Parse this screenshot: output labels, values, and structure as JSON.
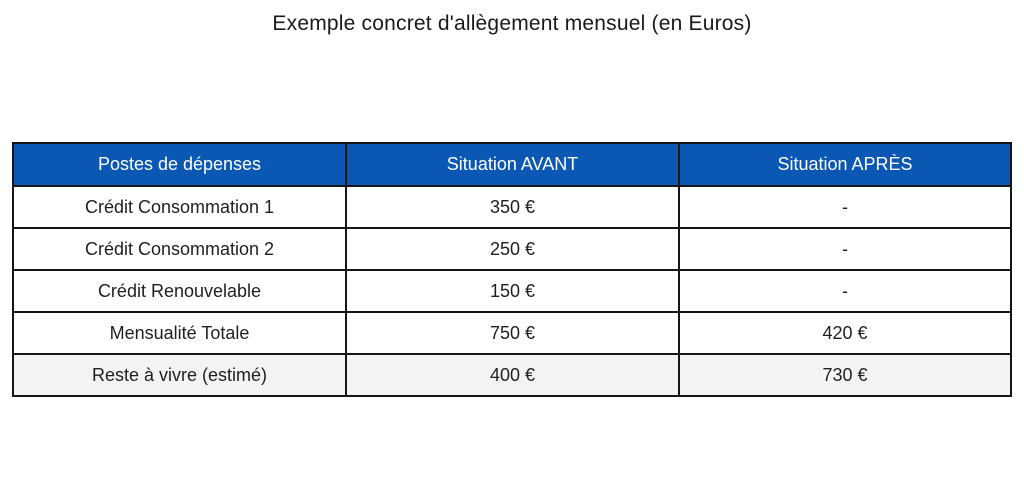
{
  "title": "Exemple concret d'allègement mensuel (en Euros)",
  "colors": {
    "header_bg": "#0b57b4",
    "header_text": "#ffffff",
    "border": "#161616",
    "last_row_bg": "#f2f3f2",
    "text": "#1f1f1f"
  },
  "table": {
    "headers": [
      "Postes de dépenses",
      "Situation AVANT",
      "Situation APRÈS"
    ],
    "rows": [
      {
        "cells": [
          "Crédit Consommation 1",
          "350 €",
          "-"
        ]
      },
      {
        "cells": [
          "Crédit Consommation 2",
          "250 €",
          "-"
        ]
      },
      {
        "cells": [
          "Crédit Renouvelable",
          "150 €",
          "-"
        ]
      },
      {
        "cells": [
          "Mensualité Totale",
          "750 €",
          "420 €"
        ]
      },
      {
        "cells": [
          "Reste à vivre (estimé)",
          "400 €",
          "730 €"
        ]
      }
    ]
  }
}
